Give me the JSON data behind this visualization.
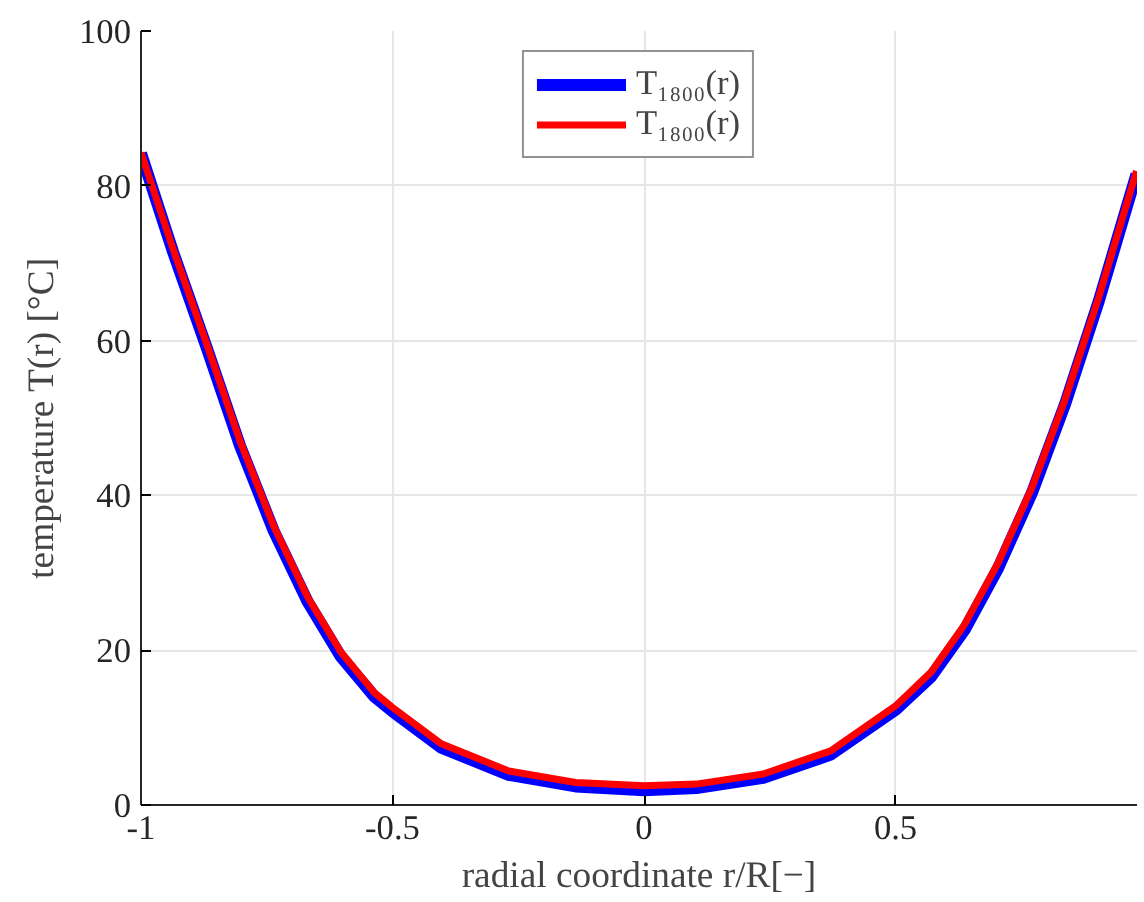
{
  "chart_data": {
    "type": "line",
    "xlabel": "radial coordinate r/R[−]",
    "ylabel": "temperature T(r) [°C]",
    "xlim": [
      -1,
      0.98
    ],
    "ylim": [
      0,
      100
    ],
    "xticks": [
      -1,
      -0.5,
      0,
      0.5
    ],
    "yticks": [
      0,
      20,
      40,
      60,
      80,
      100
    ],
    "grid": true,
    "legend": "top",
    "line_style": "solid",
    "marker": "none",
    "x": [
      -1,
      -0.936,
      -0.869,
      -0.803,
      -0.736,
      -0.669,
      -0.603,
      -0.536,
      -0.5,
      -0.403,
      -0.269,
      -0.136,
      0,
      0.104,
      0.237,
      0.371,
      0.5,
      0.571,
      0.637,
      0.704,
      0.771,
      0.837,
      0.904,
      0.979
    ],
    "series": [
      {
        "name": "T₁₈₀₀(r)",
        "color": "#0000ff",
        "values": [
          84.2,
          71.4,
          59,
          46.4,
          35.4,
          26.3,
          19.2,
          14,
          12.1,
          7.4,
          3.9,
          2.4,
          1.9,
          2.2,
          3.5,
          6.5,
          12.3,
          16.6,
          22.6,
          30.6,
          40.3,
          51.8,
          65.1,
          81.5
        ]
      },
      {
        "name": "T₁₈₀₀(r)",
        "color": "#ff0000",
        "values": [
          84.3,
          71.8,
          59.5,
          47,
          36,
          26.9,
          19.8,
          14.5,
          12.6,
          7.9,
          4.4,
          2.9,
          2.5,
          2.7,
          4,
          7,
          12.8,
          17.2,
          23.3,
          31.3,
          41,
          52.4,
          65.6,
          81.9
        ]
      }
    ]
  }
}
